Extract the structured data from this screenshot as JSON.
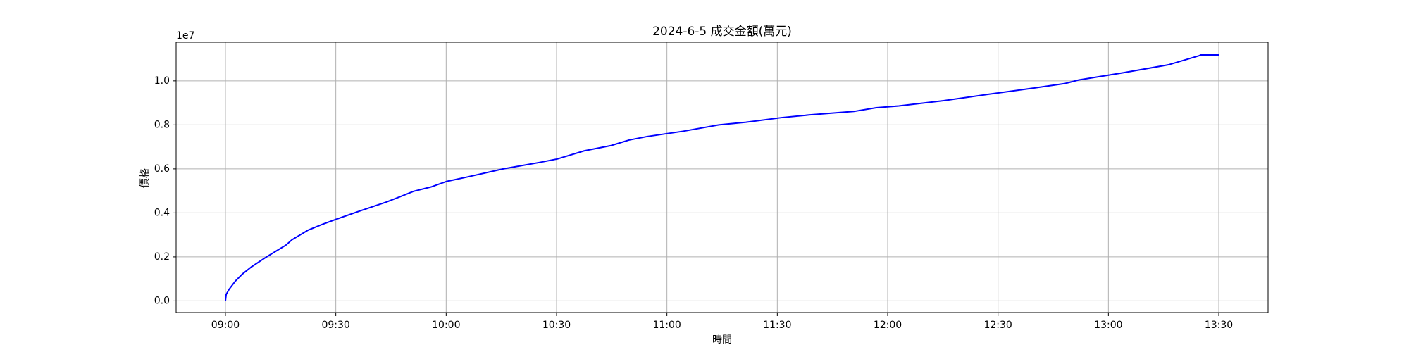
{
  "chart_data": {
    "type": "line",
    "title": "2024-6-5 成交金額(萬元)",
    "x_label": "時間",
    "y_label": "價格",
    "y_offset_label": "1e7",
    "x": [
      540,
      540.2,
      541.0,
      542.7,
      544.6,
      547.1,
      550.8,
      554.4,
      556.4,
      558.1,
      562.5,
      566.2,
      570.1,
      576.4,
      583.7,
      587.4,
      591.1,
      595.9,
      600.1,
      605.7,
      615.5,
      625.3,
      630.2,
      637.5,
      644.8,
      649.7,
      654.6,
      664.4,
      674.1,
      681.5,
      691.2,
      698.6,
      710.8,
      716.9,
      723.0,
      735.2,
      747.4,
      759.6,
      768.2,
      771.9,
      784.1,
      796.3,
      804.6,
      805.1,
      810
    ],
    "series": [
      {
        "color": "#0000ff",
        "values": [
          0,
          0.029,
          0.053,
          0.09,
          0.122,
          0.155,
          0.196,
          0.233,
          0.253,
          0.278,
          0.322,
          0.347,
          0.371,
          0.408,
          0.449,
          0.473,
          0.498,
          0.518,
          0.543,
          0.563,
          0.6,
          0.629,
          0.645,
          0.682,
          0.706,
          0.731,
          0.747,
          0.771,
          0.8,
          0.812,
          0.833,
          0.845,
          0.861,
          0.878,
          0.886,
          0.91,
          0.939,
          0.967,
          0.988,
          1.004,
          1.037,
          1.073,
          1.114,
          1.118,
          1.118
        ]
      }
    ],
    "xlim": [
      526.6,
      823.4
    ],
    "xticks": [
      {
        "value": 540,
        "label": "09:00"
      },
      {
        "value": 570,
        "label": "09:30"
      },
      {
        "value": 600,
        "label": "10:00"
      },
      {
        "value": 630,
        "label": "10:30"
      },
      {
        "value": 660,
        "label": "11:00"
      },
      {
        "value": 690,
        "label": "11:30"
      },
      {
        "value": 720,
        "label": "12:00"
      },
      {
        "value": 750,
        "label": "12:30"
      },
      {
        "value": 780,
        "label": "13:00"
      },
      {
        "value": 810,
        "label": "13:30"
      }
    ],
    "ylim": [
      -0.053,
      1.1755
    ],
    "yticks": [
      {
        "value": 0,
        "label": "0.0"
      },
      {
        "value": 0.2,
        "label": "0.2"
      },
      {
        "value": 0.4,
        "label": "0.4"
      },
      {
        "value": 0.6,
        "label": "0.6"
      },
      {
        "value": 0.8,
        "label": "0.8"
      },
      {
        "value": 1.0,
        "label": "1.0"
      }
    ],
    "grid": true
  }
}
